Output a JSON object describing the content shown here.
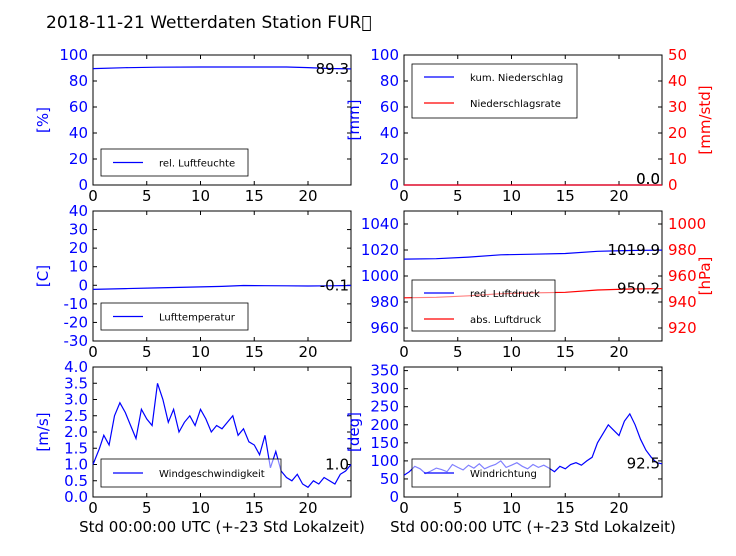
{
  "title": "2018-11-21 Wetterdaten Station FUR\u0000",
  "colors": {
    "left_axis": "#0000ff",
    "right_axis": "#ff0000",
    "line1": "#0000ff",
    "line2": "#ff0000"
  },
  "chart_data": [
    {
      "type": "line",
      "id": "p1",
      "ylabel": "[%]",
      "xlim": [
        0,
        24
      ],
      "ylim": [
        0,
        100
      ],
      "xticks": [
        0,
        5,
        10,
        15,
        20
      ],
      "yticks": [
        0,
        20,
        40,
        60,
        80,
        100
      ],
      "legend": [
        "rel. Luftfeuchte"
      ],
      "legend_placement": "lower-left",
      "value_label": "89.3",
      "series": [
        {
          "name": "rel. Luftfeuchte",
          "x": [
            0,
            3,
            6,
            10,
            14,
            18,
            20,
            22,
            24
          ],
          "y": [
            89.5,
            90.2,
            90.6,
            90.8,
            90.8,
            90.8,
            90.3,
            89.6,
            89.3
          ]
        }
      ]
    },
    {
      "type": "line",
      "id": "p2",
      "ylabel": "[mm]",
      "y2label": "[mm/std]",
      "xlim": [
        0,
        24
      ],
      "ylim": [
        0,
        100
      ],
      "y2lim": [
        0,
        50
      ],
      "xticks": [
        0,
        5,
        10,
        15,
        20
      ],
      "yticks": [
        0,
        20,
        40,
        60,
        80,
        100
      ],
      "y2ticks": [
        0,
        10,
        20,
        30,
        40,
        50
      ],
      "legend": [
        "kum. Niederschlag",
        "Niederschlagsrate"
      ],
      "legend_placement": "upper-left",
      "value_labels": [
        "0.0",
        "0.0"
      ],
      "series": [
        {
          "name": "kum. Niederschlag",
          "axis": "left",
          "x": [
            0,
            24
          ],
          "y": [
            0,
            0
          ]
        },
        {
          "name": "Niederschlagsrate",
          "axis": "right",
          "x": [
            0,
            24
          ],
          "y": [
            0,
            0
          ]
        }
      ]
    },
    {
      "type": "line",
      "id": "p3",
      "ylabel": "[C]",
      "xlim": [
        0,
        24
      ],
      "ylim": [
        -30,
        40
      ],
      "xticks": [
        0,
        5,
        10,
        15,
        20
      ],
      "yticks": [
        -30,
        -20,
        -10,
        0,
        10,
        20,
        30,
        40
      ],
      "legend": [
        "Lufttemperatur"
      ],
      "legend_placement": "lower-left",
      "value_label": "-0.1",
      "series": [
        {
          "name": "Lufttemperatur",
          "x": [
            0,
            3,
            6,
            9,
            12,
            14,
            16,
            18,
            20,
            22,
            24
          ],
          "y": [
            -2.2,
            -1.8,
            -1.4,
            -1.0,
            -0.6,
            -0.1,
            -0.2,
            -0.3,
            -0.4,
            -0.3,
            -0.1
          ]
        }
      ]
    },
    {
      "type": "line",
      "id": "p4",
      "y2label": "[hPa]",
      "xlim": [
        0,
        24
      ],
      "ylim": [
        950,
        1050
      ],
      "y2lim": [
        910,
        1010
      ],
      "xticks": [
        0,
        5,
        10,
        15,
        20
      ],
      "yticks": [
        960,
        980,
        1000,
        1020,
        1040
      ],
      "y2ticks": [
        920,
        940,
        960,
        980,
        1000
      ],
      "legend": [
        "red. Luftdruck",
        "abs. Luftdruck"
      ],
      "legend_placement": "lower-left",
      "value_labels": [
        "1019.9",
        "950.2"
      ],
      "series": [
        {
          "name": "red. Luftdruck",
          "axis": "left",
          "x": [
            0,
            3,
            6,
            9,
            12,
            15,
            18,
            21,
            24
          ],
          "y": [
            1013.0,
            1013.3,
            1014.5,
            1016.3,
            1016.8,
            1017.3,
            1019.0,
            1019.6,
            1019.9
          ]
        },
        {
          "name": "abs. Luftdruck",
          "axis": "right",
          "x": [
            0,
            3,
            6,
            9,
            12,
            15,
            18,
            21,
            24
          ],
          "y": [
            943.2,
            943.6,
            944.8,
            946.4,
            947.0,
            947.5,
            949.2,
            950.0,
            950.2
          ]
        }
      ]
    },
    {
      "type": "line",
      "id": "p5",
      "ylabel": "[m/s]",
      "xlabel": "Std 00:00:00 UTC (+-23 Std Lokalzeit)",
      "xlim": [
        0,
        24
      ],
      "ylim": [
        0,
        4.0
      ],
      "xticks": [
        0,
        5,
        10,
        15,
        20
      ],
      "yticks": [
        0.0,
        0.5,
        1.0,
        1.5,
        2.0,
        2.5,
        3.0,
        3.5,
        4.0
      ],
      "legend": [
        "Windgeschwindigkeit"
      ],
      "legend_placement": "lower-left",
      "value_label": "1.0",
      "series": [
        {
          "name": "Windgeschwindigkeit",
          "x": [
            0,
            0.6,
            1.0,
            1.5,
            2.0,
            2.5,
            3.0,
            3.5,
            4.0,
            4.5,
            5.0,
            5.5,
            6.0,
            6.5,
            7.0,
            7.5,
            8.0,
            8.5,
            9.0,
            9.5,
            10.0,
            10.5,
            11.0,
            11.5,
            12.0,
            12.5,
            13.0,
            13.5,
            14.0,
            14.5,
            15.0,
            15.5,
            16.0,
            16.5,
            17.0,
            17.5,
            18.0,
            18.5,
            19.0,
            19.5,
            20.0,
            20.5,
            21.0,
            21.5,
            22.0,
            22.5,
            23.0,
            23.5,
            24.0
          ],
          "y": [
            1.0,
            1.5,
            1.9,
            1.6,
            2.5,
            2.9,
            2.6,
            2.2,
            1.8,
            2.7,
            2.4,
            2.2,
            3.5,
            3.0,
            2.3,
            2.7,
            2.0,
            2.3,
            2.5,
            2.2,
            2.7,
            2.4,
            2.0,
            2.2,
            2.1,
            2.3,
            2.5,
            1.9,
            2.1,
            1.7,
            1.6,
            1.3,
            1.9,
            0.9,
            1.4,
            0.8,
            0.6,
            0.5,
            0.7,
            0.4,
            0.3,
            0.5,
            0.4,
            0.6,
            0.5,
            0.4,
            0.7,
            0.8,
            1.0
          ]
        }
      ]
    },
    {
      "type": "line",
      "id": "p6",
      "ylabel": "[deg]",
      "xlabel": "Std 00:00:00 UTC (+-23 Std Lokalzeit)",
      "xlim": [
        0,
        24
      ],
      "ylim": [
        0,
        360
      ],
      "xticks": [
        0,
        5,
        10,
        15,
        20
      ],
      "yticks": [
        0,
        50,
        100,
        150,
        200,
        250,
        300,
        350
      ],
      "legend": [
        "Windrichtung"
      ],
      "legend_placement": "lower-left",
      "value_label": "92.5",
      "series": [
        {
          "name": "Windrichtung",
          "x": [
            0,
            0.5,
            1.0,
            1.5,
            2.0,
            2.5,
            3.0,
            3.5,
            4.0,
            4.5,
            5.0,
            5.5,
            6.0,
            6.5,
            7.0,
            7.5,
            8.0,
            8.5,
            9.0,
            9.5,
            10.0,
            10.5,
            11.0,
            11.5,
            12.0,
            12.5,
            13.0,
            13.5,
            14.0,
            14.5,
            15.0,
            15.5,
            16.0,
            16.5,
            17.0,
            17.5,
            18.0,
            18.5,
            19.0,
            19.5,
            20.0,
            20.5,
            21.0,
            21.5,
            22.0,
            22.5,
            23.0,
            23.5,
            24.0
          ],
          "y": [
            60,
            70,
            85,
            78,
            65,
            72,
            80,
            76,
            70,
            90,
            82,
            75,
            88,
            80,
            92,
            78,
            85,
            90,
            100,
            82,
            88,
            95,
            85,
            78,
            90,
            82,
            88,
            80,
            70,
            85,
            78,
            90,
            95,
            88,
            100,
            110,
            150,
            175,
            200,
            185,
            170,
            210,
            230,
            200,
            160,
            130,
            110,
            95,
            92
          ]
        }
      ]
    }
  ]
}
